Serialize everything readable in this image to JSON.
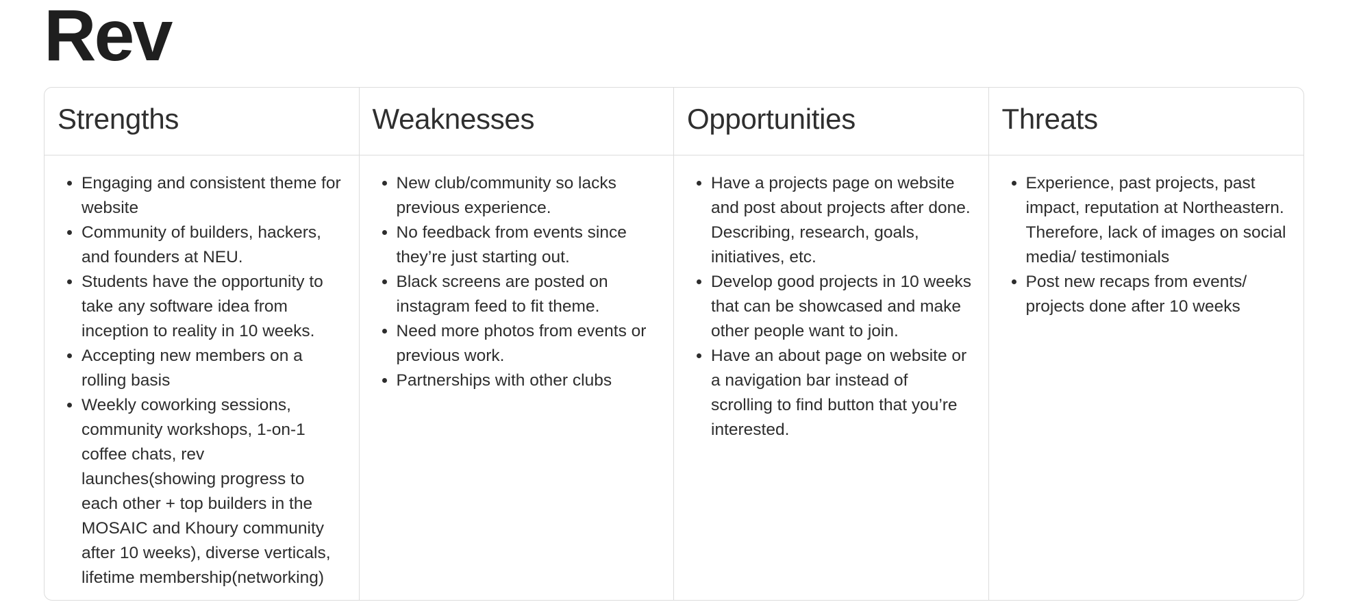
{
  "page": {
    "title": "Rev"
  },
  "swot": {
    "columns": [
      {
        "heading": "Strengths",
        "items": [
          "Engaging and consistent theme for website",
          "Community of builders, hackers, and founders at NEU.",
          "Students have the opportunity to take any software idea from inception to reality in 10 weeks.",
          "Accepting new members on a rolling basis",
          "Weekly coworking sessions, community workshops, 1-on-1 coffee chats, rev launches(showing progress to each other + top builders in the MOSAIC and Khoury community after 10 weeks), diverse verticals, lifetime membership(networking)"
        ]
      },
      {
        "heading": "Weaknesses",
        "items": [
          "New club/community so lacks previous experience.",
          "No feedback from events since they’re just starting out.",
          "Black screens are posted on instagram feed to fit theme.",
          "Need more photos from events or previous work.",
          "Partnerships with other clubs"
        ]
      },
      {
        "heading": "Opportunities",
        "items": [
          "Have a projects page on website and post about projects after done. Describing, research, goals, initiatives, etc.",
          "Develop good projects in 10 weeks that can be showcased and make other people want to join.",
          "Have an about page on website or a navigation bar instead of scrolling to find button that you’re interested."
        ]
      },
      {
        "heading": "Threats",
        "items": [
          "Experience, past projects, past impact, reputation at Northeastern. Therefore, lack of images on social media/ testimonials",
          "Post new recaps from events/ projects done after 10 weeks"
        ]
      }
    ]
  }
}
